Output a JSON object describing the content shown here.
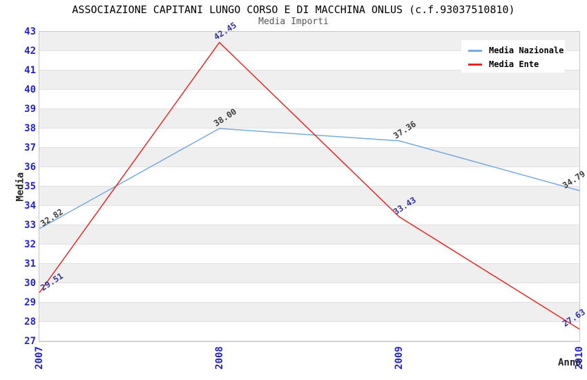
{
  "header": {
    "title": "ASSOCIAZIONE CAPITANI LUNGO CORSO E DI MACCHINA ONLUS (c.f.93037510810)",
    "subtitle": "Media Importi"
  },
  "axes": {
    "y_label": "Media",
    "x_label": "Anno"
  },
  "legend": {
    "items": [
      {
        "label": "Media Nazionale"
      },
      {
        "label": "Media Ente"
      }
    ]
  },
  "colors": {
    "title": "#000000",
    "subtitle": "#555555",
    "tick_labels": "#2222CC",
    "band_gray": "#EFEFEF",
    "gridline": "#E2E2E2",
    "plot_border": "#C6C6C6",
    "nazionale_line": "#77AADF",
    "ente_line": "#E82525",
    "nazionale_value_labels": "#3C3C3C",
    "ente_value_labels": "#3333A0"
  },
  "chart_data": {
    "type": "line",
    "title": "Media Importi",
    "x": [
      "2007",
      "2008",
      "2009",
      "2010"
    ],
    "series": [
      {
        "name": "Media Nazionale",
        "values": [
          32.82,
          38.0,
          37.36,
          34.79
        ],
        "color": "#77AADF",
        "label_color": "#3C3C3C"
      },
      {
        "name": "Media Ente",
        "values": [
          29.51,
          42.45,
          33.43,
          27.63
        ],
        "color": "#E82525",
        "label_color": "#3333A0"
      }
    ],
    "xlabel": "Anno",
    "ylabel": "Media",
    "ylim": [
      27,
      43
    ],
    "ytick_step": 1,
    "xtick_rotation_deg": -90,
    "value_label_format": "0.00",
    "grid": true,
    "legend_position": "top-right",
    "plot_background": "alternating horizontal bands gray/white per 1 unit"
  }
}
